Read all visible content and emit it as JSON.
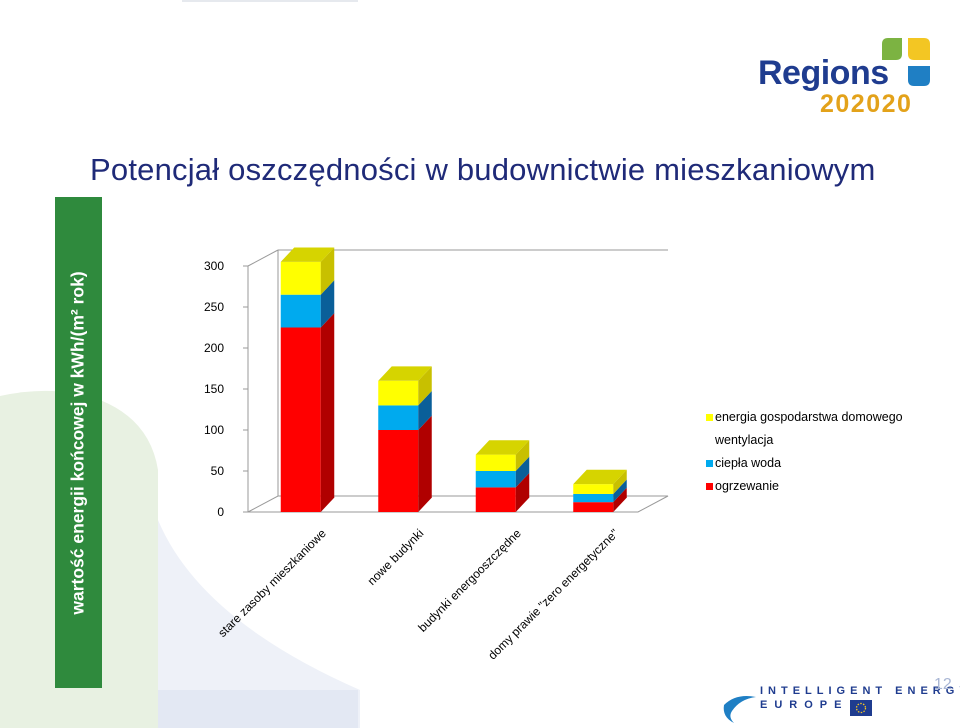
{
  "slide": {
    "title": "Potencjał oszczędności w budownictwie mieszkaniowym",
    "side_label": "wartość energii końcowej w kWh/(m² rok)",
    "page_number": "12"
  },
  "logo": {
    "word": "Regions",
    "year": "202020",
    "colors": {
      "word": "#1f3c8f",
      "year": "#e3a21a",
      "leaf_green": "#7cb342",
      "leaf_yellow": "#f3c623",
      "leaf_blue": "#1f7fc4"
    }
  },
  "footer": {
    "program_line1": "INTELLIGENT ENERGY",
    "program_line2": "EUROPE",
    "icons": [
      "ie-swoosh-icon",
      "eu-flag-icon"
    ]
  },
  "chart_data": {
    "type": "bar",
    "stacked": true,
    "three_d": true,
    "categories": [
      "stare zasoby mieszkaniowe",
      "nowe budynki",
      "budynki energooszczędne",
      "domy prawie \"zero energetyczne\""
    ],
    "series": [
      {
        "name": "ogrzewanie",
        "color": "#ff0000",
        "values": [
          225,
          100,
          30,
          12
        ]
      },
      {
        "name": "ciepła woda",
        "color": "#00aaee",
        "values": [
          40,
          30,
          20,
          10
        ]
      },
      {
        "name": "wentylacja",
        "color": "#ffffff",
        "values": [
          0,
          0,
          0,
          0
        ]
      },
      {
        "name": "energia gospodarstwa domowego",
        "color": "#ffff00",
        "values": [
          40,
          30,
          20,
          12
        ]
      }
    ],
    "legend_order": [
      "energia gospodarstwa domowego",
      "wentylacja",
      "ciepła woda",
      "ogrzewanie"
    ],
    "ylim": [
      0,
      300
    ],
    "yticks": [
      "0",
      "50",
      "100",
      "150",
      "200",
      "250",
      "300"
    ],
    "ytick_values": [
      0,
      50,
      100,
      150,
      200,
      250,
      300
    ],
    "grid": false,
    "legend_position": "right"
  }
}
